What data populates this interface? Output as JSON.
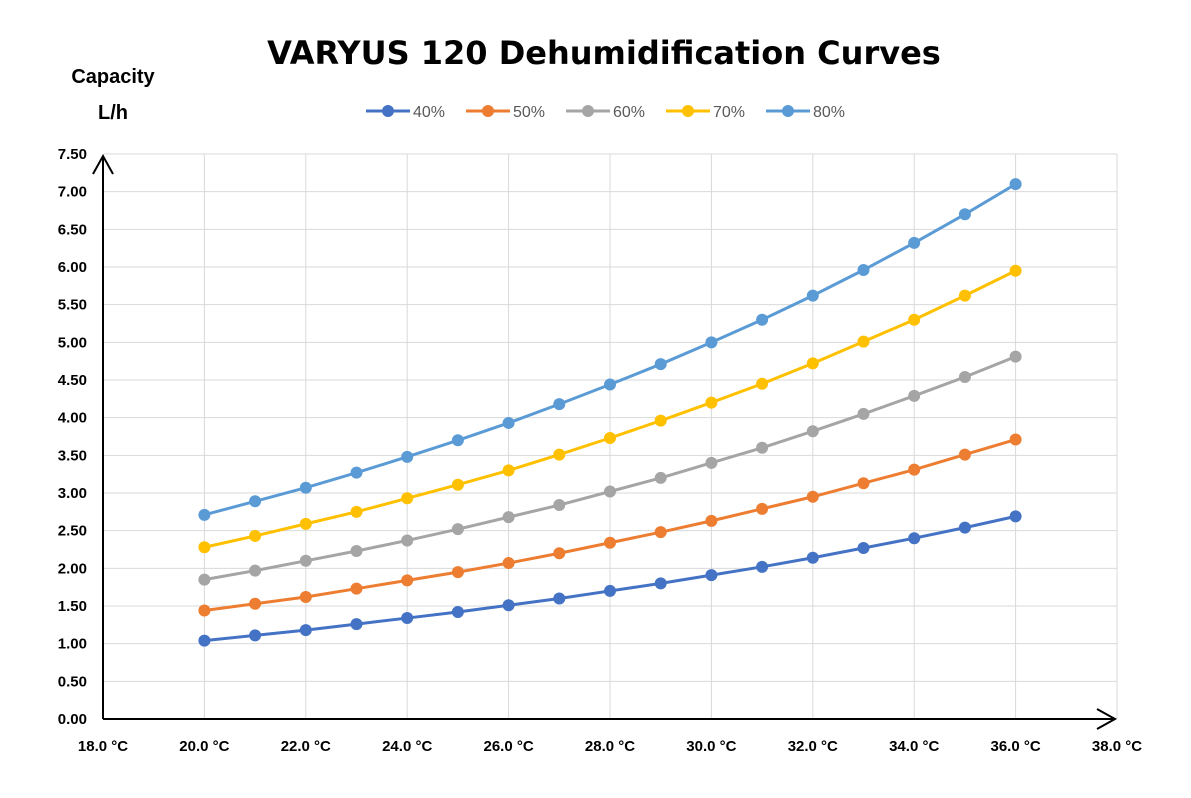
{
  "chart_data": {
    "type": "line",
    "title": "VARYUS 120 Dehumidification Curves",
    "ylabel": [
      "Capacity",
      "L/h"
    ],
    "xlabel": "",
    "xlim": [
      18,
      38
    ],
    "ylim": [
      0,
      7.5
    ],
    "x_ticks": [
      "18.0 °C",
      "20.0 °C",
      "22.0 °C",
      "24.0 °C",
      "26.0 °C",
      "28.0 °C",
      "30.0 °C",
      "32.0 °C",
      "34.0 °C",
      "36.0 °C",
      "38.0 °C"
    ],
    "y_ticks": [
      "0.00",
      "0.50",
      "1.00",
      "1.50",
      "2.00",
      "2.50",
      "3.00",
      "3.50",
      "4.00",
      "4.50",
      "5.00",
      "5.50",
      "6.00",
      "6.50",
      "7.00",
      "7.50"
    ],
    "grid": true,
    "legend_position": "top",
    "x": [
      20,
      21,
      22,
      23,
      24,
      25,
      26,
      27,
      28,
      29,
      30,
      31,
      32,
      33,
      34,
      35,
      36
    ],
    "series": [
      {
        "name": "40%",
        "color": "#4472c4",
        "values": [
          1.04,
          1.11,
          1.18,
          1.26,
          1.34,
          1.42,
          1.51,
          1.6,
          1.7,
          1.8,
          1.91,
          2.02,
          2.14,
          2.27,
          2.4,
          2.54,
          2.69
        ]
      },
      {
        "name": "50%",
        "color": "#ed7d31",
        "values": [
          1.44,
          1.53,
          1.62,
          1.73,
          1.84,
          1.95,
          2.07,
          2.2,
          2.34,
          2.48,
          2.63,
          2.79,
          2.95,
          3.13,
          3.31,
          3.51,
          3.71
        ]
      },
      {
        "name": "60%",
        "color": "#a5a5a5",
        "values": [
          1.85,
          1.97,
          2.1,
          2.23,
          2.37,
          2.52,
          2.68,
          2.84,
          3.02,
          3.2,
          3.4,
          3.6,
          3.82,
          4.05,
          4.29,
          4.54,
          4.81
        ]
      },
      {
        "name": "70%",
        "color": "#ffc000",
        "values": [
          2.28,
          2.43,
          2.59,
          2.75,
          2.93,
          3.11,
          3.3,
          3.51,
          3.73,
          3.96,
          4.2,
          4.45,
          4.72,
          5.01,
          5.3,
          5.62,
          5.95
        ]
      },
      {
        "name": "80%",
        "color": "#5b9bd5",
        "values": [
          2.71,
          2.89,
          3.07,
          3.27,
          3.48,
          3.7,
          3.93,
          4.18,
          4.44,
          4.71,
          5.0,
          5.3,
          5.62,
          5.96,
          6.32,
          6.7,
          7.1
        ]
      }
    ]
  }
}
